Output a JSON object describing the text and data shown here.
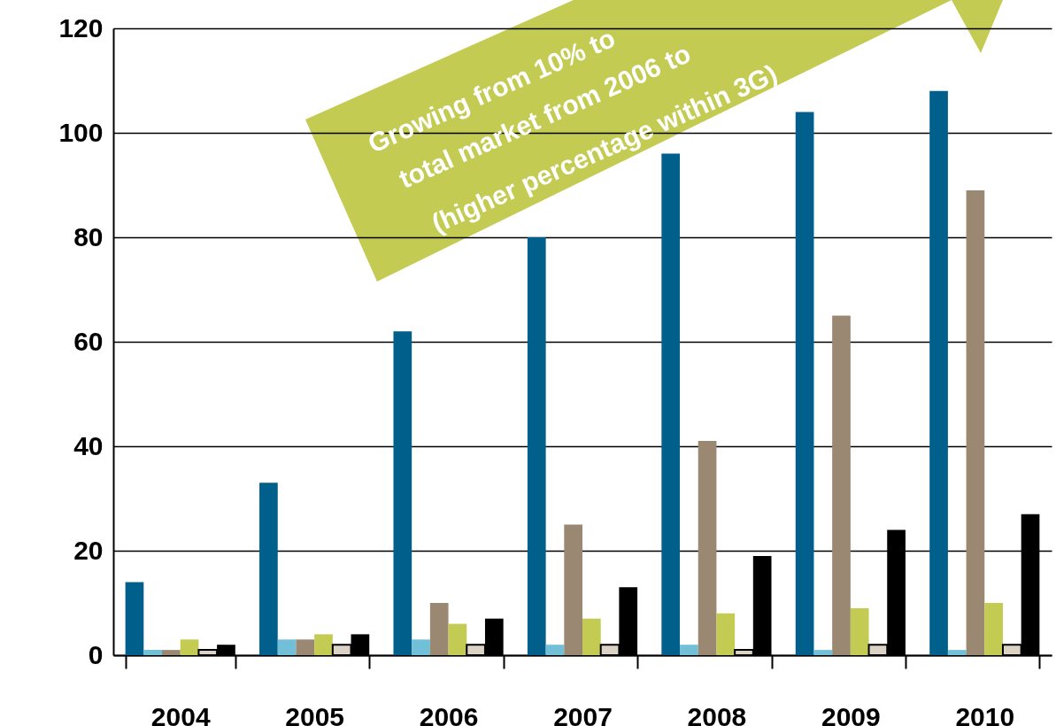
{
  "chart_data": {
    "type": "bar",
    "categories": [
      "2004",
      "2005",
      "2006",
      "2007",
      "2008",
      "2009",
      "2010"
    ],
    "series": [
      {
        "color": "#005f8b",
        "values": [
          14,
          33,
          62,
          80,
          96,
          104,
          108
        ]
      },
      {
        "color": "#72bfd8",
        "values": [
          1,
          3,
          3,
          2,
          2,
          1,
          1
        ]
      },
      {
        "color": "#9b8872",
        "values": [
          1,
          3,
          10,
          25,
          41,
          65,
          89
        ]
      },
      {
        "color": "#c3cb52",
        "values": [
          3,
          4,
          6,
          7,
          8,
          9,
          10
        ]
      },
      {
        "color": "#dcd3c6",
        "values": [
          1,
          2,
          2,
          2,
          1,
          2,
          2
        ]
      },
      {
        "color": "#000000",
        "values": [
          2,
          4,
          7,
          13,
          19,
          24,
          27
        ]
      }
    ],
    "ylim": [
      0,
      120
    ],
    "yticks": [
      0,
      20,
      40,
      60,
      80,
      100,
      120
    ],
    "grid": "y",
    "legend": false,
    "annotations": [
      "Growing from 10% to",
      "total market from 2006 to",
      "(higher percentage within 3G)"
    ]
  }
}
